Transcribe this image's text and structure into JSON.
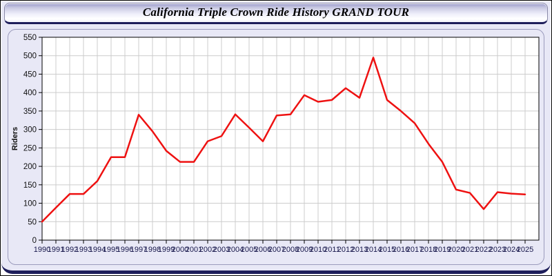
{
  "window": {
    "title": "California Triple Crown Ride History GRAND TOUR"
  },
  "chart_data": {
    "type": "line",
    "title": "California Triple Crown Ride History GRAND TOUR",
    "xlabel": "",
    "ylabel": "Riders",
    "x": [
      1990,
      1991,
      1992,
      1993,
      1994,
      1995,
      1996,
      1997,
      1998,
      1999,
      2000,
      2001,
      2002,
      2003,
      2004,
      2005,
      2006,
      2007,
      2008,
      2009,
      2010,
      2011,
      2012,
      2013,
      2014,
      2015,
      2016,
      2017,
      2018,
      2019,
      2020,
      2021,
      2022,
      2023,
      2024,
      2025
    ],
    "series": [
      {
        "name": "Riders",
        "values": [
          50,
          88,
          125,
          125,
          160,
          225,
          225,
          340,
          295,
          242,
          212,
          212,
          268,
          282,
          341,
          305,
          268,
          338,
          341,
          393,
          375,
          380,
          412,
          386,
          495,
          380,
          350,
          317,
          261,
          212,
          137,
          128,
          84,
          130,
          126,
          124
        ]
      }
    ],
    "ylim": [
      0,
      550
    ],
    "ytick_step": 50,
    "grid": true,
    "legend_position": "none"
  },
  "colors": {
    "line": "#ee1111",
    "plot_background": "#ffffff",
    "plot_border": "#000000",
    "grid": "#cccccc",
    "page_background": "#e8e8f6",
    "navy_accent": "#1d1d5a"
  }
}
